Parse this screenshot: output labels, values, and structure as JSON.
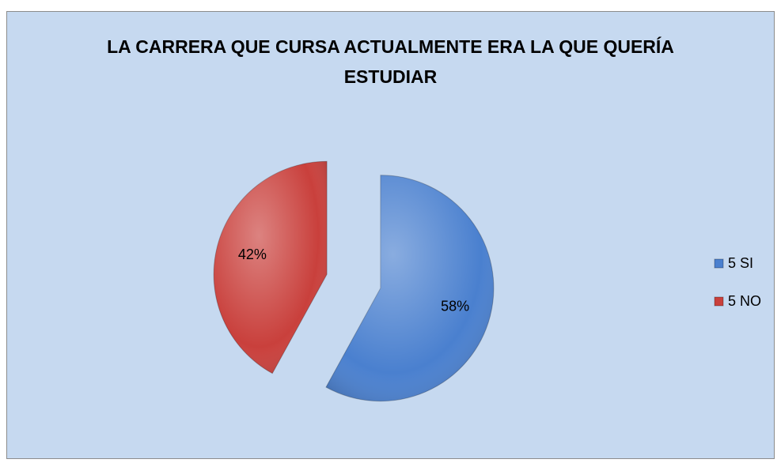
{
  "chart_data": {
    "type": "pie",
    "title": "LA CARRERA QUE CURSA ACTUALMENTE ERA LA QUE QUERÍA ESTUDIAR",
    "categories": [
      "5 SI",
      "5 NO"
    ],
    "values": [
      58,
      42
    ],
    "value_labels": [
      "58%",
      "42%"
    ],
    "colors": [
      "#4a80cf",
      "#c9403c"
    ],
    "legend": "right"
  }
}
